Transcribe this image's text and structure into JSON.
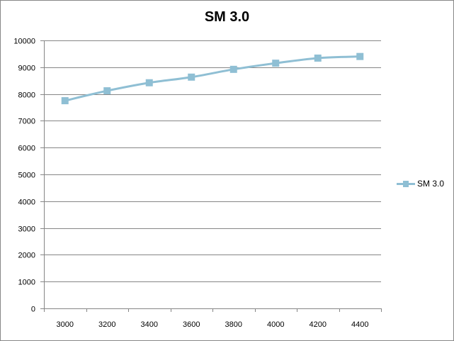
{
  "chart_data": {
    "type": "line",
    "title": "SM 3.0",
    "xlabel": "",
    "ylabel": "",
    "categories": [
      "3000",
      "3200",
      "3400",
      "3600",
      "3800",
      "4000",
      "4200",
      "4400"
    ],
    "series": [
      {
        "name": "SM 3.0",
        "color": "#8fbfd4",
        "marker": "square",
        "values": [
          7750,
          8120,
          8420,
          8630,
          8920,
          9150,
          9340,
          9400
        ]
      }
    ],
    "ylim": [
      0,
      10000
    ],
    "yticks": [
      "0",
      "1000",
      "2000",
      "3000",
      "4000",
      "5000",
      "6000",
      "7000",
      "8000",
      "9000",
      "10000"
    ],
    "grid": true,
    "legend_position": "right"
  }
}
